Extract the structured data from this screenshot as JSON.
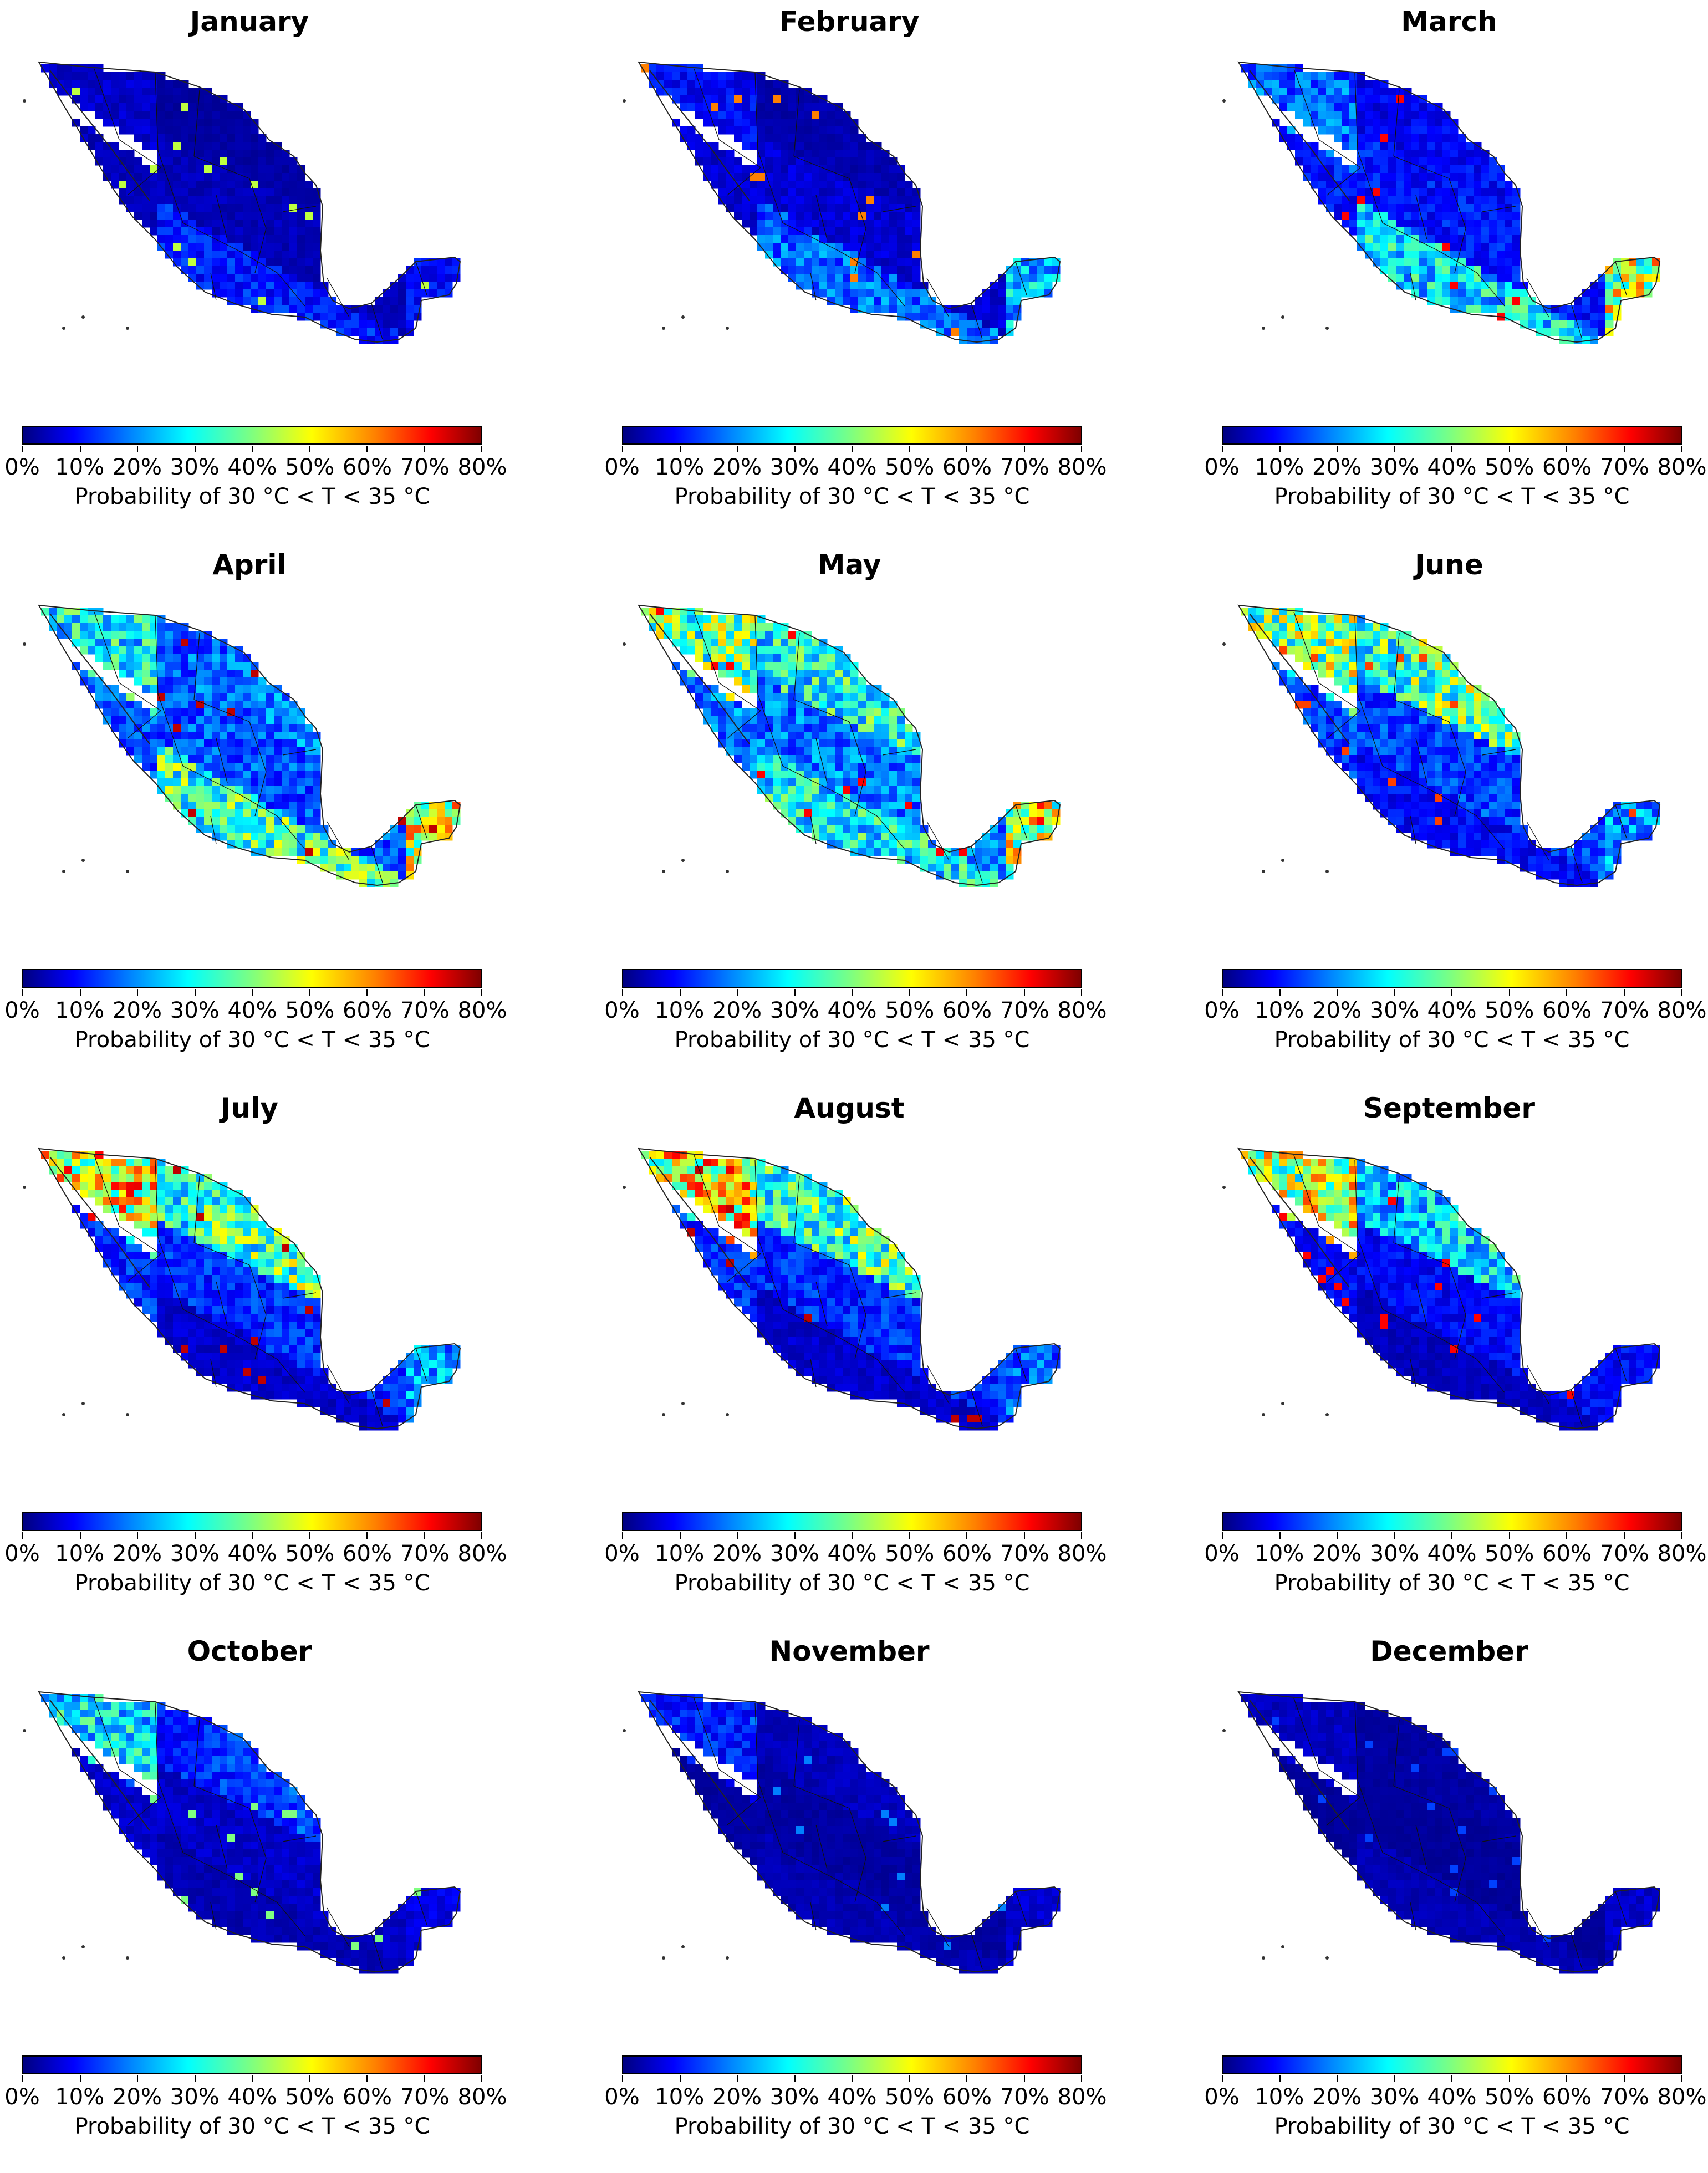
{
  "figure": {
    "colorbar_label": "Probability of 30 °C < T < 35 °C",
    "colorbar_ticks": [
      "0%",
      "10%",
      "20%",
      "30%",
      "40%",
      "50%",
      "60%",
      "70%",
      "80%"
    ],
    "colormap": "jet",
    "colormap_range": [
      0,
      80
    ],
    "colors": {
      "low": "#00007f",
      "mid": "#7fff7f",
      "high": "#7f0000"
    }
  },
  "panels": [
    {
      "title": "January",
      "north": 3,
      "coast": 6,
      "south": 12,
      "yucatan": 10,
      "hot_spot": 45
    },
    {
      "title": "February",
      "north": 4,
      "coast": 10,
      "south": 18,
      "yucatan": 25,
      "hot_spot": 60
    },
    {
      "title": "March",
      "north": 10,
      "coast": 18,
      "south": 28,
      "yucatan": 45,
      "hot_spot": 70
    },
    {
      "title": "April",
      "north": 20,
      "coast": 30,
      "south": 35,
      "yucatan": 48,
      "hot_spot": 75
    },
    {
      "title": "May",
      "north": 35,
      "coast": 38,
      "south": 30,
      "yucatan": 48,
      "hot_spot": 70
    },
    {
      "title": "June",
      "north": 40,
      "coast": 42,
      "south": 10,
      "yucatan": 22,
      "hot_spot": 65
    },
    {
      "title": "July",
      "north": 38,
      "coast": 50,
      "south": 6,
      "yucatan": 22,
      "hot_spot": 75
    },
    {
      "title": "August",
      "north": 38,
      "coast": 50,
      "south": 6,
      "yucatan": 18,
      "hot_spot": 75
    },
    {
      "title": "September",
      "north": 28,
      "coast": 45,
      "south": 5,
      "yucatan": 10,
      "hot_spot": 70
    },
    {
      "title": "October",
      "north": 15,
      "coast": 28,
      "south": 4,
      "yucatan": 8,
      "hot_spot": 40
    },
    {
      "title": "November",
      "north": 5,
      "coast": 12,
      "south": 4,
      "yucatan": 6,
      "hot_spot": 20
    },
    {
      "title": "December",
      "north": 3,
      "coast": 5,
      "south": 4,
      "yucatan": 6,
      "hot_spot": 15
    }
  ]
}
